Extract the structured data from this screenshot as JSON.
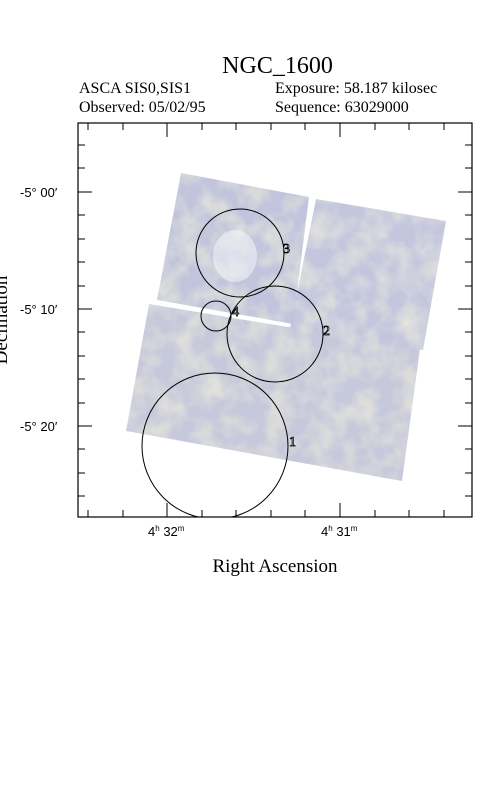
{
  "header": {
    "title": "NGC_1600",
    "instrument": "ASCA SIS0,SIS1",
    "observed": "Observed: 05/02/95",
    "exposure": "Exposure: 58.187 kilosec",
    "sequence": "Sequence: 63029000"
  },
  "axes": {
    "xlabel": "Right Ascension",
    "ylabel": "Declination",
    "x_ticks": [
      {
        "h": "4",
        "m": "32"
      },
      {
        "h": "4",
        "m": "31"
      }
    ],
    "y_ticks": [
      "-5° 00′",
      "-5° 10′",
      "-5° 20′"
    ]
  },
  "regions": [
    {
      "label": "1"
    },
    {
      "label": "2"
    },
    {
      "label": "3"
    },
    {
      "label": "4"
    }
  ],
  "colors": {
    "image_blue": "#b9bedc",
    "image_yellow": "#d9d6b0",
    "frame": "#000000"
  }
}
